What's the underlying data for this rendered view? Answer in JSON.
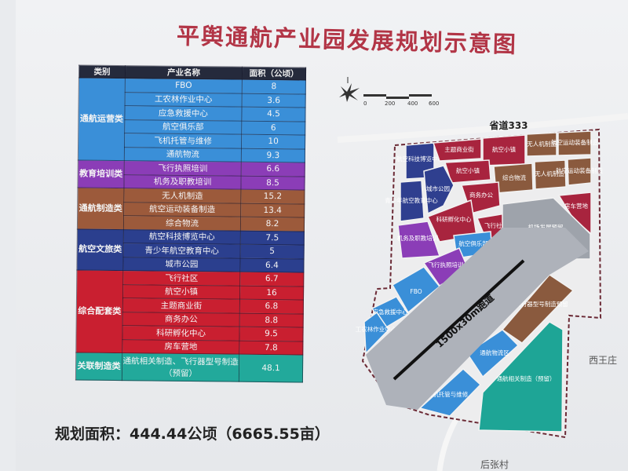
{
  "title": "平舆通航产业园发展规划示意图",
  "table": {
    "headers": [
      "类别",
      "产业名称",
      "面积（公顷）"
    ],
    "groups": [
      {
        "category": "通航运营类",
        "color": "#3a8fd8",
        "rows": [
          {
            "name": "FBO",
            "area": "8"
          },
          {
            "name": "工农林作业中心",
            "area": "3.6"
          },
          {
            "name": "应急救援中心",
            "area": "4.5"
          },
          {
            "name": "航空俱乐部",
            "area": "6"
          },
          {
            "name": "飞机托管与维修",
            "area": "10"
          },
          {
            "name": "通航物流",
            "area": "9.3"
          }
        ]
      },
      {
        "category": "教育培训类",
        "color": "#8b3db7",
        "rows": [
          {
            "name": "飞行执照培训",
            "area": "6.6"
          },
          {
            "name": "机务及职教培训",
            "area": "8.5"
          }
        ]
      },
      {
        "category": "通航制造类",
        "color": "#9c5a3b",
        "rows": [
          {
            "name": "无人机制造",
            "area": "15.2"
          },
          {
            "name": "航空运动装备制造",
            "area": "13.4"
          },
          {
            "name": "综合物流",
            "area": "8.2"
          }
        ]
      },
      {
        "category": "航空文旅类",
        "color": "#2b3f8e",
        "rows": [
          {
            "name": "航空科技博览中心",
            "area": "7.5"
          },
          {
            "name": "青少年航空教育中心",
            "area": "5"
          },
          {
            "name": "城市公园",
            "area": "6.4"
          }
        ]
      },
      {
        "category": "综合配套类",
        "color": "#c91f30",
        "rows": [
          {
            "name": "飞行社区",
            "area": "6.7"
          },
          {
            "name": "航空小镇",
            "area": "16"
          },
          {
            "name": "主题商业街",
            "area": "6.8"
          },
          {
            "name": "商务办公",
            "area": "8.8"
          },
          {
            "name": "科研孵化中心",
            "area": "9.5"
          },
          {
            "name": "房车营地",
            "area": "7.8"
          }
        ]
      },
      {
        "category": "关联制造类",
        "color": "#22a99b",
        "rows": [
          {
            "name": "通航相关制造、飞行器型号制造（预留）",
            "area": "48.1"
          }
        ]
      }
    ]
  },
  "footer": "规划面积：444.44公顷（6665.55亩）",
  "map": {
    "scale_labels": [
      "0",
      "200",
      "400",
      "600"
    ],
    "road": "省道333",
    "runway": "1500x30m跑道",
    "places": {
      "west": "西王庄",
      "south": "后张村"
    },
    "zones": {
      "museum": "航空科技博览中心",
      "street": "主题商业街",
      "town1": "航空小镇",
      "uav1": "无人机制造",
      "sport1": "航空运动装备制造",
      "town2": "航空小镇",
      "logistics": "综合物流",
      "uav2": "无人机制造",
      "sport2": "航空运动装备制造",
      "park": "城市公园",
      "youth": "青少年航空教育中心",
      "office": "商务办公",
      "research": "科研孵化中心",
      "rv": "房车营地",
      "community": "飞行社区",
      "mechanic": "机务及职教培训",
      "club": "航空俱乐部",
      "airport_reserve": "机场发展预留",
      "license": "飞行执照培训",
      "fbo": "FBO",
      "rescue": "应急救援中心",
      "agri": "工农林作业中心",
      "aircraft_mfg": "飞行器型号制造预留",
      "ga_logistics": "通航物流区",
      "hangar": "飞机托管与维修",
      "related_mfg": "通航相关制造（预留）"
    },
    "colors": {
      "ops": "#3a8fd8",
      "edu": "#8b3db7",
      "mfg": "#8a5a3e",
      "culture": "#2f3f8f",
      "support": "#a8243e",
      "related": "#1ea596",
      "reserve": "#9ea3ab"
    }
  }
}
